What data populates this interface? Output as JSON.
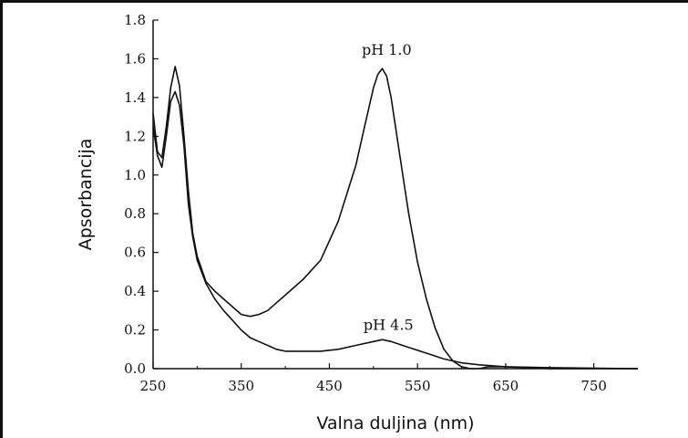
{
  "chart_data": {
    "type": "line",
    "title": "",
    "xlabel": "Valna duljina (nm)",
    "ylabel": "Apsorbancija",
    "xlim": [
      250,
      800
    ],
    "ylim": [
      0,
      1.8
    ],
    "x_ticks": [
      250,
      350,
      450,
      550,
      650,
      750
    ],
    "x_tick_labels": [
      "250",
      "350",
      "450",
      "550",
      "650",
      "750"
    ],
    "y_ticks": [
      0,
      0.2,
      0.4,
      0.6,
      0.8,
      1.0,
      1.2,
      1.4,
      1.6,
      1.8
    ],
    "y_tick_labels": [
      "0.0",
      "0.2",
      "0.4",
      "0.6",
      "0.8",
      "1.0",
      "1.2",
      "1.4",
      "1.6",
      "1.8"
    ],
    "grid": false,
    "legend": "none",
    "series": [
      {
        "name": "pH 1.0",
        "color": "#111111",
        "x": [
          250,
          255,
          260,
          265,
          270,
          275,
          280,
          285,
          290,
          295,
          300,
          310,
          320,
          330,
          340,
          350,
          360,
          370,
          380,
          390,
          400,
          420,
          440,
          460,
          480,
          490,
          500,
          505,
          510,
          515,
          520,
          530,
          540,
          550,
          560,
          570,
          580,
          590,
          600,
          610,
          620,
          630,
          650,
          700,
          800
        ],
        "y": [
          1.32,
          1.12,
          1.09,
          1.25,
          1.45,
          1.56,
          1.46,
          1.2,
          0.92,
          0.7,
          0.58,
          0.45,
          0.4,
          0.36,
          0.32,
          0.28,
          0.27,
          0.28,
          0.3,
          0.34,
          0.38,
          0.46,
          0.56,
          0.76,
          1.05,
          1.25,
          1.45,
          1.52,
          1.55,
          1.51,
          1.4,
          1.1,
          0.8,
          0.55,
          0.36,
          0.21,
          0.1,
          0.04,
          0.01,
          0.0,
          0.0,
          0.01,
          0.01,
          0.0,
          0.0
        ]
      },
      {
        "name": "pH 4.5",
        "color": "#111111",
        "x": [
          250,
          255,
          260,
          265,
          270,
          275,
          280,
          285,
          290,
          295,
          300,
          310,
          320,
          330,
          340,
          350,
          360,
          370,
          380,
          390,
          400,
          420,
          440,
          460,
          480,
          500,
          510,
          520,
          540,
          560,
          580,
          600,
          620,
          650,
          700,
          800
        ],
        "y": [
          1.25,
          1.1,
          1.04,
          1.2,
          1.38,
          1.43,
          1.36,
          1.15,
          0.85,
          0.68,
          0.56,
          0.44,
          0.36,
          0.3,
          0.25,
          0.2,
          0.16,
          0.14,
          0.12,
          0.1,
          0.09,
          0.09,
          0.09,
          0.1,
          0.12,
          0.14,
          0.15,
          0.14,
          0.11,
          0.08,
          0.05,
          0.03,
          0.02,
          0.01,
          0.005,
          0.0
        ]
      }
    ],
    "annotations": [
      {
        "text": "pH 1.0",
        "x": 515,
        "y": 1.62
      },
      {
        "text": "pH 4.5",
        "x": 517,
        "y": 0.2
      }
    ]
  }
}
